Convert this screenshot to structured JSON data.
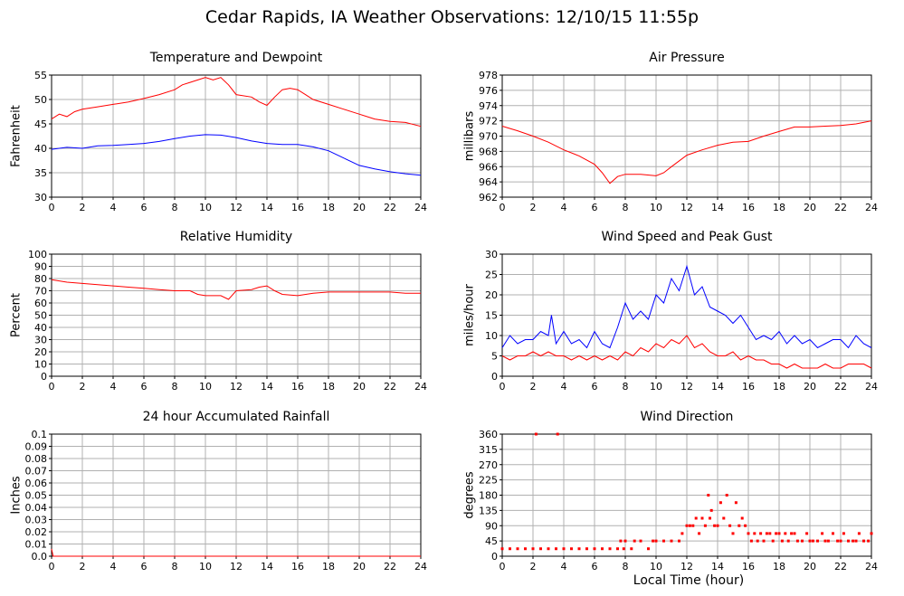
{
  "title": "Cedar Rapids, IA Weather Observations: 12/10/15 11:55p",
  "xlabel": "Local Time (hour)",
  "chart_data": [
    {
      "id": "temp",
      "type": "line",
      "title": "Temperature and Dewpoint",
      "ylabel": "Fahrenheit",
      "xlim": [
        0,
        24
      ],
      "ylim": [
        30,
        55
      ],
      "xticks": [
        0,
        2,
        4,
        6,
        8,
        10,
        12,
        14,
        16,
        18,
        20,
        22,
        24
      ],
      "yticks": [
        30,
        35,
        40,
        45,
        50,
        55
      ],
      "grid": true,
      "series": [
        {
          "color": "#ff0000",
          "x": [
            0,
            0.5,
            1,
            1.5,
            2,
            3,
            4,
            5,
            6,
            7,
            8,
            8.5,
            9,
            9.5,
            10,
            10.5,
            11,
            11.5,
            12,
            13,
            13.5,
            14,
            14.5,
            15,
            15.5,
            16,
            16.5,
            17,
            18,
            19,
            20,
            21,
            22,
            23,
            24
          ],
          "values": [
            46,
            47,
            46.5,
            47.5,
            48,
            48.5,
            49,
            49.5,
            50.2,
            51,
            52,
            53,
            53.5,
            54,
            54.5,
            54,
            54.5,
            53,
            51,
            50.5,
            49.5,
            48.8,
            50.5,
            52,
            52.3,
            52,
            51,
            50,
            49,
            48,
            47,
            46,
            45.5,
            45.3,
            44.5
          ]
        },
        {
          "color": "#0000ff",
          "x": [
            0,
            1,
            2,
            3,
            4,
            5,
            6,
            7,
            8,
            9,
            10,
            11,
            12,
            13,
            14,
            15,
            16,
            17,
            18,
            19,
            20,
            21,
            22,
            23,
            24
          ],
          "values": [
            39.8,
            40.2,
            40,
            40.5,
            40.6,
            40.8,
            41,
            41.4,
            42,
            42.5,
            42.8,
            42.7,
            42.2,
            41.5,
            41,
            40.8,
            40.8,
            40.3,
            39.5,
            38,
            36.5,
            35.8,
            35.2,
            34.8,
            34.5
          ]
        }
      ]
    },
    {
      "id": "pressure",
      "type": "line",
      "title": "Air Pressure",
      "ylabel": "millibars",
      "xlim": [
        0,
        24
      ],
      "ylim": [
        962,
        978
      ],
      "xticks": [
        0,
        2,
        4,
        6,
        8,
        10,
        12,
        14,
        16,
        18,
        20,
        22,
        24
      ],
      "yticks": [
        962,
        964,
        966,
        968,
        970,
        972,
        974,
        976,
        978
      ],
      "grid": true,
      "series": [
        {
          "color": "#ff0000",
          "x": [
            0,
            1,
            2,
            3,
            4,
            5,
            6,
            6.5,
            7,
            7.5,
            8,
            9,
            10,
            10.5,
            11,
            12,
            13,
            14,
            15,
            16,
            17,
            18,
            19,
            20,
            21,
            22,
            23,
            24
          ],
          "values": [
            971.3,
            970.7,
            970,
            969.2,
            968.2,
            967.4,
            966.3,
            965.2,
            963.8,
            964.7,
            965,
            965,
            964.8,
            965.2,
            966,
            967.5,
            968.2,
            968.8,
            969.2,
            969.3,
            970,
            970.6,
            971.2,
            971.2,
            971.3,
            971.4,
            971.6,
            972
          ]
        }
      ]
    },
    {
      "id": "humidity",
      "type": "line",
      "title": "Relative Humidity",
      "ylabel": "Percent",
      "xlim": [
        0,
        24
      ],
      "ylim": [
        0,
        100
      ],
      "xticks": [
        0,
        2,
        4,
        6,
        8,
        10,
        12,
        14,
        16,
        18,
        20,
        22,
        24
      ],
      "yticks": [
        0,
        10,
        20,
        30,
        40,
        50,
        60,
        70,
        80,
        90,
        100
      ],
      "grid": true,
      "series": [
        {
          "color": "#ff0000",
          "x": [
            0,
            1,
            2,
            3,
            4,
            5,
            6,
            7,
            8,
            9,
            9.5,
            10,
            11,
            11.5,
            12,
            13,
            13.5,
            14,
            14.5,
            15,
            16,
            17,
            18,
            19,
            20,
            21,
            22,
            23,
            24
          ],
          "values": [
            79,
            77,
            76,
            75,
            74,
            73,
            72,
            71,
            70,
            70,
            67,
            66,
            66,
            63,
            70,
            71,
            73,
            74,
            70,
            67,
            66,
            68,
            69,
            69,
            69,
            69,
            69,
            68,
            68
          ]
        }
      ]
    },
    {
      "id": "wind",
      "type": "line",
      "title": "Wind Speed and Peak Gust",
      "ylabel": "miles/hour",
      "xlim": [
        0,
        24
      ],
      "ylim": [
        0,
        30
      ],
      "xticks": [
        0,
        2,
        4,
        6,
        8,
        10,
        12,
        14,
        16,
        18,
        20,
        22,
        24
      ],
      "yticks": [
        0,
        5,
        10,
        15,
        20,
        25,
        30
      ],
      "grid": true,
      "series": [
        {
          "color": "#0000ff",
          "x": [
            0,
            0.5,
            1,
            1.5,
            2,
            2.5,
            3,
            3.2,
            3.5,
            4,
            4.5,
            5,
            5.5,
            6,
            6.5,
            7,
            7.5,
            8,
            8.5,
            9,
            9.5,
            10,
            10.5,
            11,
            11.5,
            12,
            12.5,
            13,
            13.5,
            14,
            14.5,
            15,
            15.5,
            16,
            16.5,
            17,
            17.5,
            18,
            18.5,
            19,
            19.5,
            20,
            20.5,
            21,
            21.5,
            22,
            22.5,
            23,
            23.5,
            24
          ],
          "values": [
            7,
            10,
            8,
            9,
            9,
            11,
            10,
            15,
            8,
            11,
            8,
            9,
            7,
            11,
            8,
            7,
            12,
            18,
            14,
            16,
            14,
            20,
            18,
            24,
            21,
            27,
            20,
            22,
            17,
            16,
            15,
            13,
            15,
            12,
            9,
            10,
            9,
            11,
            8,
            10,
            8,
            9,
            7,
            8,
            9,
            9,
            7,
            10,
            8,
            7
          ]
        },
        {
          "color": "#ff0000",
          "x": [
            0,
            0.5,
            1,
            1.5,
            2,
            2.5,
            3,
            3.5,
            4,
            4.5,
            5,
            5.5,
            6,
            6.5,
            7,
            7.5,
            8,
            8.5,
            9,
            9.5,
            10,
            10.5,
            11,
            11.5,
            12,
            12.5,
            13,
            13.5,
            14,
            14.5,
            15,
            15.5,
            16,
            16.5,
            17,
            17.5,
            18,
            18.5,
            19,
            19.5,
            20,
            20.5,
            21,
            21.5,
            22,
            22.5,
            23,
            23.5,
            24
          ],
          "values": [
            5,
            4,
            5,
            5,
            6,
            5,
            6,
            5,
            5,
            4,
            5,
            4,
            5,
            4,
            5,
            4,
            6,
            5,
            7,
            6,
            8,
            7,
            9,
            8,
            10,
            7,
            8,
            6,
            5,
            5,
            6,
            4,
            5,
            4,
            4,
            3,
            3,
            2,
            3,
            2,
            2,
            2,
            3,
            2,
            2,
            3,
            3,
            3,
            2
          ]
        }
      ]
    },
    {
      "id": "rain",
      "type": "line",
      "title": "24 hour Accumulated Rainfall",
      "ylabel": "Inches",
      "xlim": [
        0,
        24
      ],
      "ylim": [
        0,
        0.1
      ],
      "xticks": [
        0,
        2,
        4,
        6,
        8,
        10,
        12,
        14,
        16,
        18,
        20,
        22,
        24
      ],
      "yticks": [
        0.0,
        0.01,
        0.02,
        0.03,
        0.04,
        0.05,
        0.06,
        0.07,
        0.08,
        0.09,
        0.1
      ],
      "ytick_labels": [
        "0.0",
        "0.01",
        "0.02",
        "0.03",
        "0.04",
        "0.05",
        "0.06",
        "0.07",
        "0.08",
        "0.09",
        "0.1"
      ],
      "grid": true,
      "series": [
        {
          "color": "#ff0000",
          "x": [
            0,
            0.1,
            24
          ],
          "values": [
            0.006,
            0,
            0
          ]
        }
      ]
    },
    {
      "id": "direction",
      "type": "scatter",
      "title": "Wind Direction",
      "ylabel": "degrees",
      "xlim": [
        0,
        24
      ],
      "ylim": [
        0,
        360
      ],
      "xticks": [
        0,
        2,
        4,
        6,
        8,
        10,
        12,
        14,
        16,
        18,
        20,
        22,
        24
      ],
      "yticks": [
        0,
        45,
        90,
        135,
        180,
        225,
        270,
        315,
        360
      ],
      "grid": true,
      "series": [
        {
          "color": "#ff0000",
          "x": [
            0,
            0.5,
            1,
            1.5,
            2,
            2.2,
            2.5,
            3,
            3.5,
            3.6,
            4,
            4.5,
            5,
            5.5,
            6,
            6.5,
            7,
            7.5,
            7.7,
            7.9,
            8,
            8.4,
            8.6,
            9,
            9.5,
            9.8,
            10,
            10.5,
            11,
            11.5,
            11.7,
            12,
            12.2,
            12.4,
            12.6,
            12.8,
            13,
            13.2,
            13.4,
            13.5,
            13.6,
            13.8,
            14,
            14.2,
            14.4,
            14.6,
            14.8,
            15,
            15.2,
            15.4,
            15.6,
            15.8,
            16,
            16.2,
            16.4,
            16.6,
            16.8,
            17,
            17.2,
            17.4,
            17.6,
            17.8,
            18,
            18.2,
            18.4,
            18.6,
            18.8,
            19,
            19.2,
            19.5,
            19.8,
            20,
            20.2,
            20.5,
            20.8,
            21,
            21.2,
            21.5,
            21.8,
            22,
            22.2,
            22.5,
            22.8,
            23,
            23.2,
            23.5,
            23.8,
            24
          ],
          "values": [
            22,
            22,
            22,
            22,
            22,
            360,
            22,
            22,
            22,
            360,
            22,
            22,
            22,
            22,
            22,
            22,
            22,
            22,
            45,
            22,
            45,
            22,
            45,
            45,
            22,
            45,
            45,
            45,
            45,
            45,
            67,
            90,
            90,
            90,
            112,
            67,
            112,
            90,
            180,
            112,
            135,
            90,
            90,
            158,
            112,
            180,
            90,
            67,
            158,
            90,
            112,
            90,
            67,
            45,
            67,
            45,
            67,
            45,
            67,
            67,
            45,
            67,
            67,
            45,
            67,
            45,
            67,
            67,
            45,
            45,
            67,
            45,
            45,
            45,
            67,
            45,
            45,
            67,
            45,
            45,
            67,
            45,
            45,
            45,
            67,
            45,
            45,
            67
          ]
        }
      ]
    }
  ]
}
